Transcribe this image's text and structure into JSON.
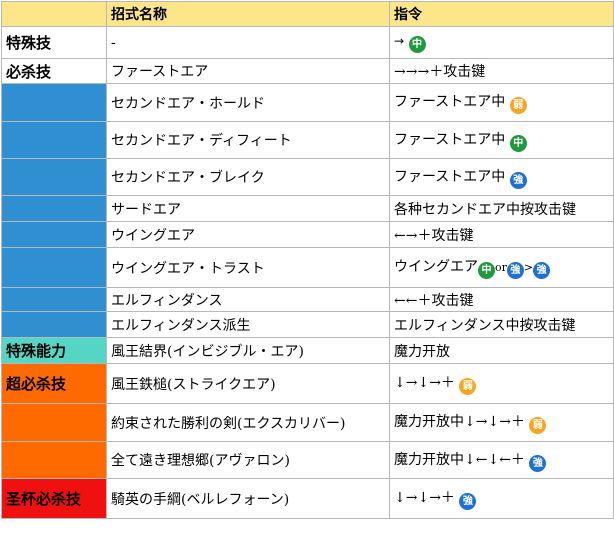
{
  "header": {
    "col1": "",
    "col2": "招式名称",
    "col3": "指令"
  },
  "badges": {
    "zhong": "中",
    "qiang": "強",
    "ruo": "弱",
    "ruo_alt": "弱"
  },
  "rows": [
    {
      "cat": "特殊技",
      "name": "-",
      "cmd_text": "→"
    },
    {
      "cat": "必杀技",
      "name": "ファーストエア",
      "cmd_text": "→→→＋攻击键"
    },
    {
      "cat": "",
      "name": "セカンドエア・ホールド",
      "cmd_text": "ファーストエア中"
    },
    {
      "cat": "",
      "name": "セカンドエア・ディフィート",
      "cmd_text": "ファーストエア中"
    },
    {
      "cat": "",
      "name": "セカンドエア・ブレイク",
      "cmd_text": "ファーストエア中"
    },
    {
      "cat": "",
      "name": "サードエア",
      "cmd_text": "各种セカンドエア中按攻击键"
    },
    {
      "cat": "",
      "name": "ウイングエア",
      "cmd_text": "←→＋攻击键"
    },
    {
      "cat": "",
      "name": "ウイングエア・トラスト",
      "cmd_text": "ウイングエア",
      "cmd_or": "or",
      "cmd_gt": ">"
    },
    {
      "cat": "",
      "name": "エルフィンダンス",
      "cmd_text": "←←＋攻击键"
    },
    {
      "cat": "",
      "name": "エルフィンダンス派生",
      "cmd_text": "エルフィンダンス中按攻击键"
    },
    {
      "cat": "特殊能力",
      "name": "風王結界(インビジブル・エア)",
      "cmd_text": "魔力开放"
    },
    {
      "cat": "超必杀技",
      "name": "風王鉄槌(ストライクエア)",
      "cmd_text": "↓→↓→＋"
    },
    {
      "cat": "",
      "name": "約束された勝利の剣(エクスカリバー)",
      "cmd_text": "魔力开放中↓→↓→＋"
    },
    {
      "cat": "",
      "name": "全て遠き理想郷(アヴァロン)",
      "cmd_text": "魔力开放中↓←↓←＋"
    },
    {
      "cat": "圣杯必杀技",
      "name": "騎英の手綱(ベルレフォーン)",
      "cmd_text": "↓→↓→＋"
    }
  ]
}
